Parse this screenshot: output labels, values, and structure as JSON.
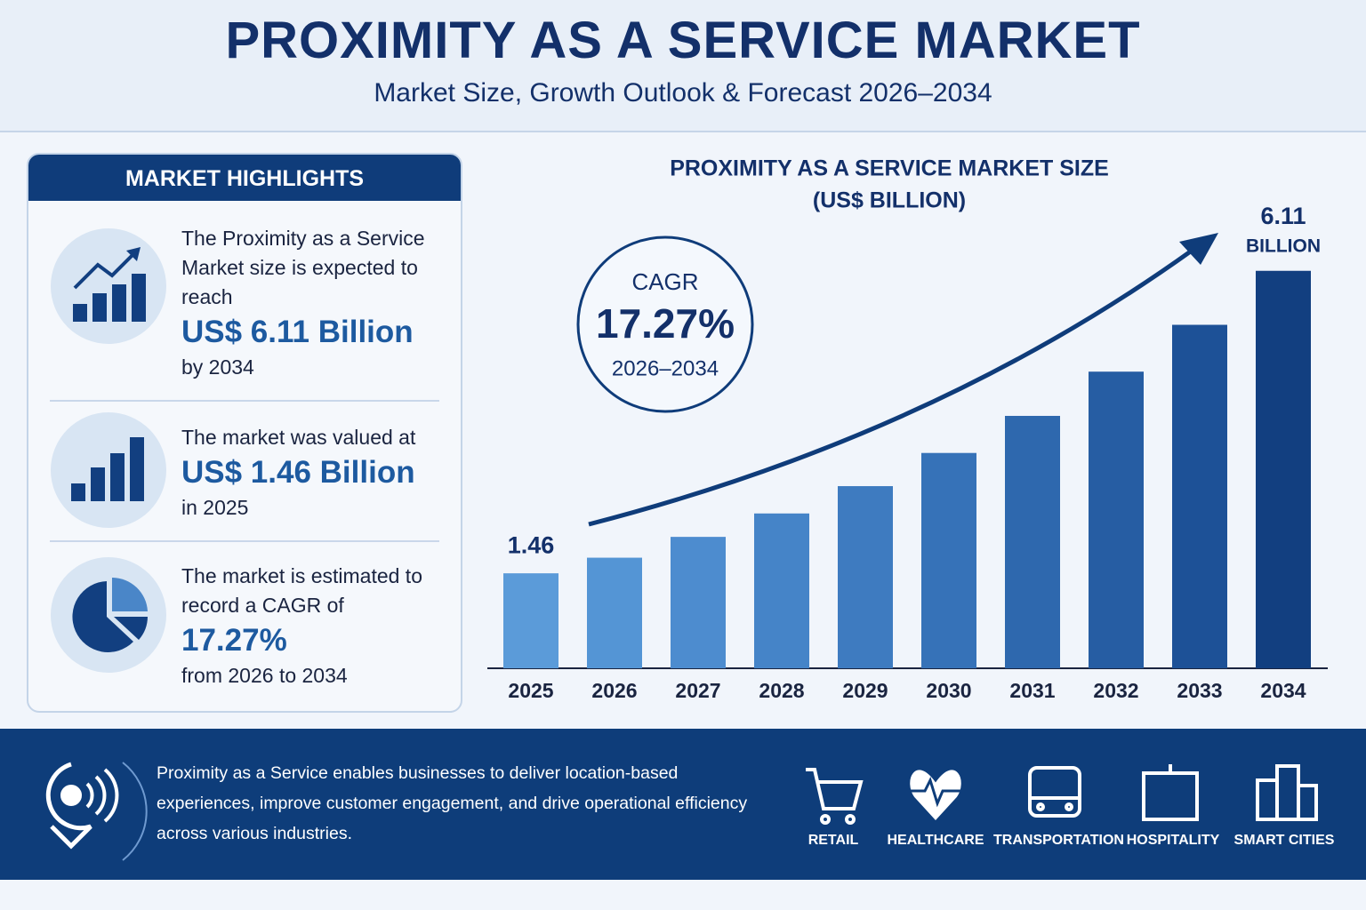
{
  "header": {
    "title": "PROXIMITY AS A SERVICE MARKET",
    "subtitle": "Market Size, Growth Outlook & Forecast 2026–2034"
  },
  "highlights": {
    "title": "MARKET HIGHLIGHTS",
    "items": [
      {
        "text": "The Proximity as a Service Market size is expected to reach",
        "emphasis": "US$ 6.11 Billion",
        "tail": "by 2034"
      },
      {
        "text": "The market was valued at",
        "emphasis": "US$ 1.46 Billion",
        "tail": "in 2025"
      },
      {
        "text": "The market is estimated to record a CAGR of",
        "emphasis": "17.27%",
        "tail": "from 2026 to 2034"
      }
    ]
  },
  "chart_data": {
    "type": "bar",
    "title": "PROXIMITY AS A SERVICE MARKET SIZE",
    "subtitle": "(US$ BILLION)",
    "categories": [
      "2025",
      "2026",
      "2027",
      "2028",
      "2029",
      "2030",
      "2031",
      "2032",
      "2033",
      "2034"
    ],
    "values": [
      1.46,
      1.7,
      2.02,
      2.38,
      2.8,
      3.31,
      3.88,
      4.56,
      5.28,
      6.11
    ],
    "value_labels": [
      "1.46",
      null,
      null,
      null,
      null,
      null,
      null,
      null,
      null,
      "6.11"
    ],
    "unit_label": "BILLION",
    "colors": [
      "#5b9bd9",
      "#5495d5",
      "#4d8ccf",
      "#4584c8",
      "#3e7bc0",
      "#3672b8",
      "#2e68ae",
      "#265da3",
      "#1d5197",
      "#123f80"
    ],
    "cagr": {
      "label": "CAGR",
      "value": "17.27%",
      "period": "2026–2034"
    }
  },
  "footer": {
    "text": "Proximity as a Service enables businesses to deliver location-based experiences, improve customer engagement, and drive operational efficiency across various industries.",
    "industries": [
      "RETAIL",
      "HEALTHCARE",
      "TRANSPORTATION",
      "HOSPITALITY",
      "SMART CITIES"
    ]
  }
}
